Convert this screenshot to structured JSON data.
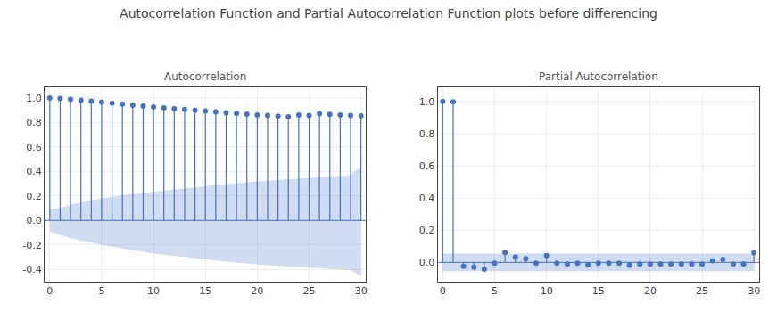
{
  "title": "Autocorrelation Function and Partial Autocorrelation Function plots before differencing",
  "chart_data": [
    {
      "type": "stem",
      "title": "Autocorrelation",
      "x": [
        0,
        1,
        2,
        3,
        4,
        5,
        6,
        7,
        8,
        9,
        10,
        11,
        12,
        13,
        14,
        15,
        16,
        17,
        18,
        19,
        20,
        21,
        22,
        23,
        24,
        25,
        26,
        27,
        28,
        29,
        30
      ],
      "values": [
        1.0,
        0.995,
        0.989,
        0.982,
        0.974,
        0.966,
        0.958,
        0.95,
        0.942,
        0.934,
        0.926,
        0.919,
        0.912,
        0.906,
        0.9,
        0.893,
        0.886,
        0.88,
        0.874,
        0.868,
        0.862,
        0.857,
        0.852,
        0.847,
        0.862,
        0.857,
        0.872,
        0.867,
        0.862,
        0.857,
        0.853
      ],
      "conf_upper": [
        0.09,
        0.1,
        0.13,
        0.15,
        0.165,
        0.18,
        0.195,
        0.205,
        0.215,
        0.225,
        0.235,
        0.245,
        0.255,
        0.26,
        0.27,
        0.28,
        0.29,
        0.295,
        0.305,
        0.31,
        0.32,
        0.325,
        0.33,
        0.335,
        0.34,
        0.345,
        0.35,
        0.36,
        0.365,
        0.37,
        0.44
      ],
      "conf_lower": [
        -0.09,
        -0.12,
        -0.145,
        -0.165,
        -0.185,
        -0.2,
        -0.215,
        -0.23,
        -0.245,
        -0.255,
        -0.27,
        -0.28,
        -0.29,
        -0.3,
        -0.31,
        -0.32,
        -0.33,
        -0.335,
        -0.345,
        -0.35,
        -0.36,
        -0.365,
        -0.37,
        -0.375,
        -0.38,
        -0.385,
        -0.39,
        -0.395,
        -0.4,
        -0.405,
        -0.455
      ],
      "color": "#4472C4",
      "xlim": [
        -0.5,
        30.5
      ],
      "xticks": [
        0,
        5,
        10,
        15,
        20,
        25,
        30
      ],
      "ylim": [
        -0.5,
        1.09
      ],
      "yticks": [
        -0.4,
        -0.2,
        {
          "value": 0.0,
          "label": "0.0"
        },
        0.2,
        0.4,
        0.6,
        0.8,
        {
          "value": 1.0,
          "label": "1.0"
        }
      ],
      "grid": true
    },
    {
      "type": "stem",
      "title": "Partial Autocorrelation",
      "x": [
        0,
        1,
        2,
        3,
        4,
        5,
        6,
        7,
        8,
        9,
        10,
        11,
        12,
        13,
        14,
        15,
        16,
        17,
        18,
        19,
        20,
        21,
        22,
        23,
        24,
        25,
        26,
        27,
        28,
        29,
        30
      ],
      "values": [
        1.0,
        0.998,
        -0.025,
        -0.03,
        -0.042,
        -0.005,
        0.062,
        0.033,
        0.022,
        -0.005,
        0.042,
        -0.005,
        -0.01,
        -0.005,
        -0.015,
        -0.005,
        -0.005,
        -0.005,
        -0.018,
        -0.01,
        -0.01,
        -0.01,
        -0.01,
        -0.01,
        -0.01,
        -0.01,
        0.01,
        0.018,
        -0.01,
        -0.01,
        0.06
      ],
      "conf_upper": [
        0.055,
        0.055,
        0.055,
        0.055,
        0.055,
        0.055,
        0.055,
        0.055,
        0.055,
        0.055,
        0.055,
        0.055,
        0.055,
        0.055,
        0.055,
        0.055,
        0.055,
        0.055,
        0.055,
        0.055,
        0.055,
        0.055,
        0.055,
        0.055,
        0.055,
        0.055,
        0.055,
        0.055,
        0.055,
        0.055,
        0.055
      ],
      "conf_lower": [
        -0.055,
        -0.055,
        -0.055,
        -0.055,
        -0.055,
        -0.055,
        -0.055,
        -0.055,
        -0.055,
        -0.055,
        -0.055,
        -0.055,
        -0.055,
        -0.055,
        -0.055,
        -0.055,
        -0.055,
        -0.055,
        -0.055,
        -0.055,
        -0.055,
        -0.055,
        -0.055,
        -0.055,
        -0.055,
        -0.055,
        -0.055,
        -0.055,
        -0.055,
        -0.055,
        -0.055
      ],
      "color": "#4472C4",
      "xlim": [
        -0.5,
        30.5
      ],
      "xticks": [
        0,
        5,
        10,
        15,
        20,
        25,
        30
      ],
      "ylim": [
        -0.12,
        1.09
      ],
      "yticks": [
        {
          "value": 0.0,
          "label": "0.0"
        },
        0.2,
        0.4,
        0.6,
        0.8,
        {
          "value": 1.0,
          "label": "1.0"
        }
      ],
      "grid": true
    }
  ]
}
